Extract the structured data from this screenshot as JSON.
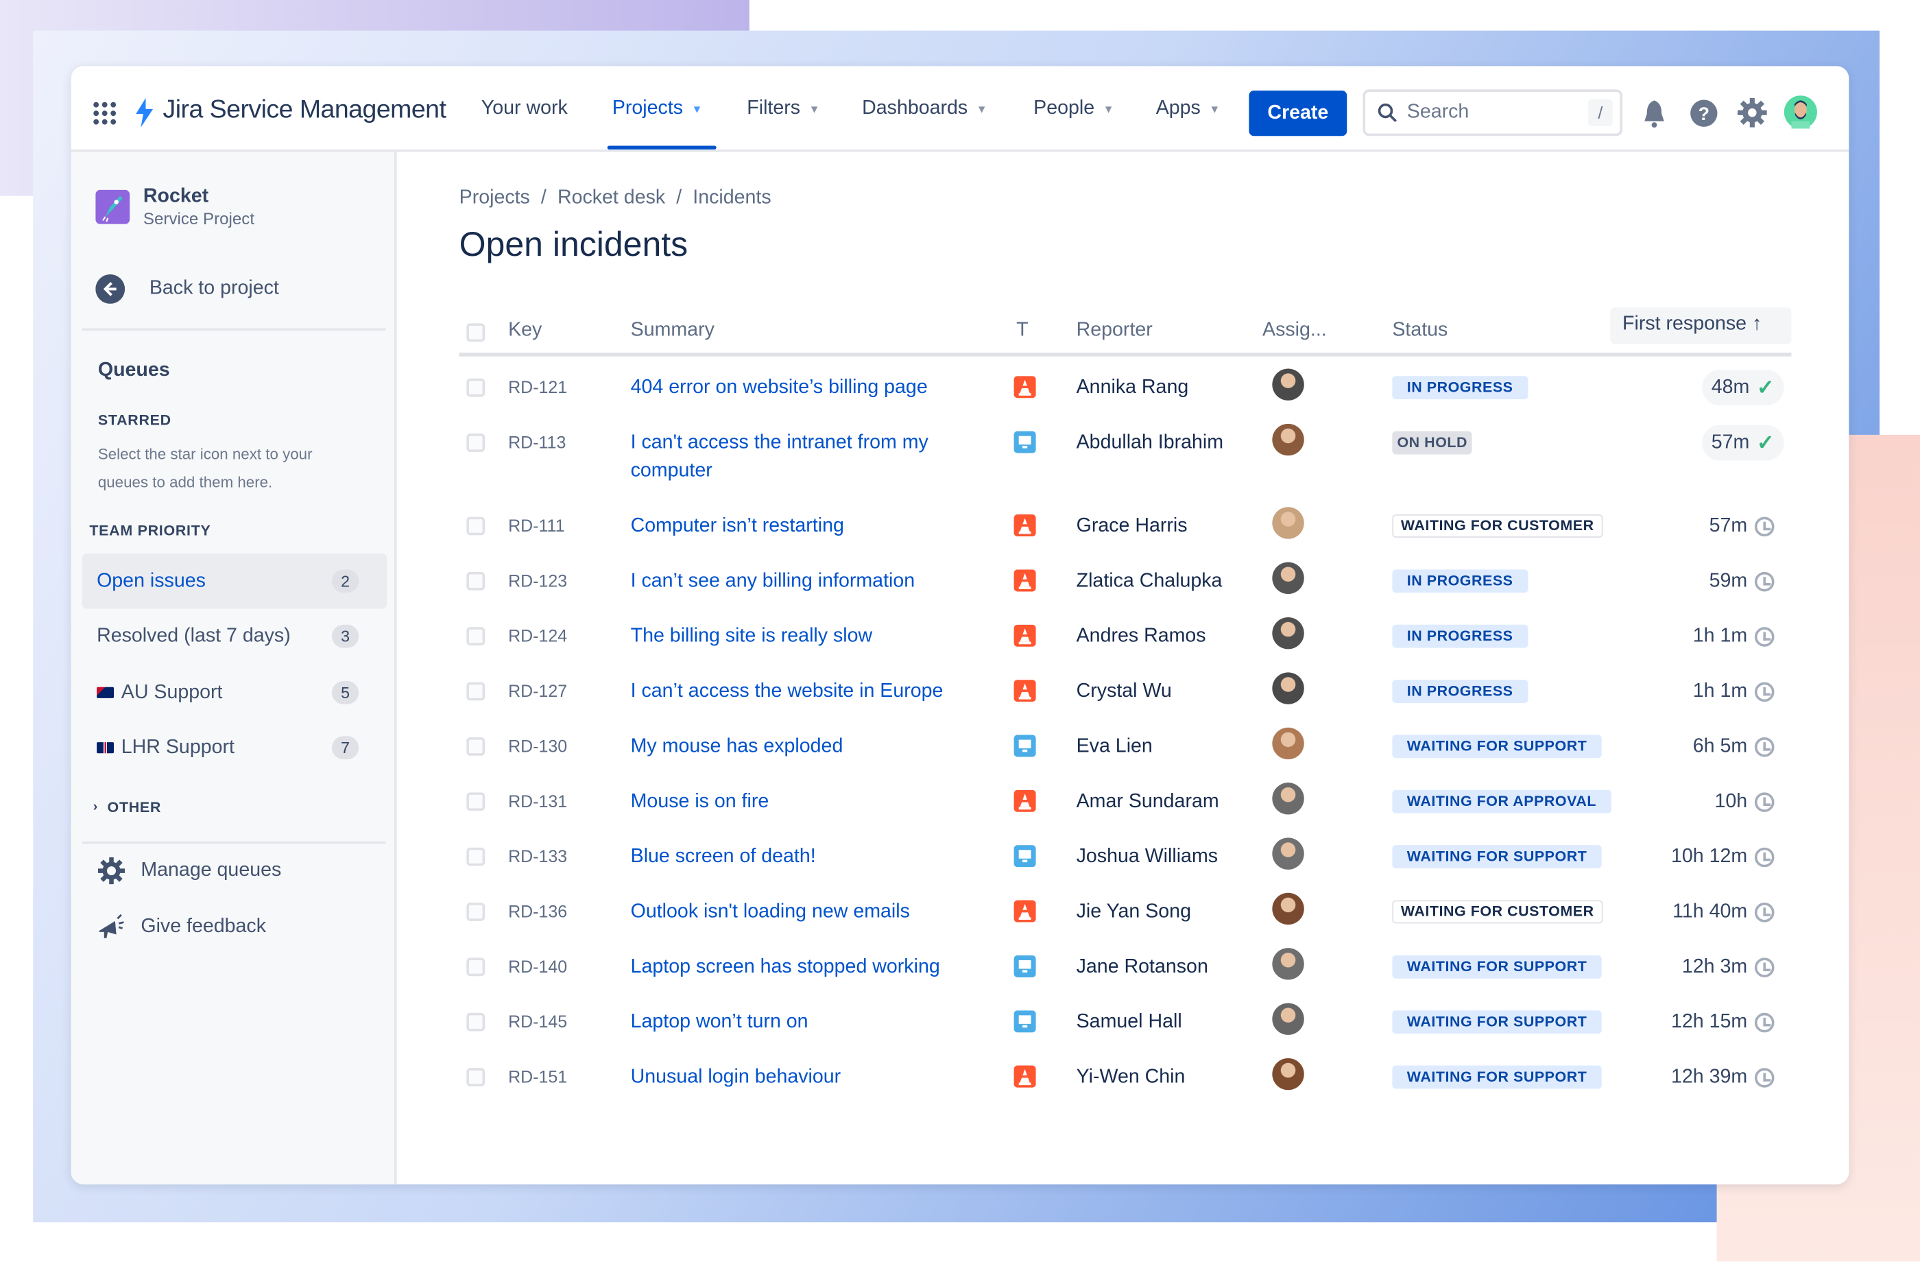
{
  "header": {
    "app_name": "Jira Service Management",
    "nav": [
      {
        "label": "Your work",
        "dropdown": false
      },
      {
        "label": "Projects",
        "dropdown": true,
        "active": true
      },
      {
        "label": "Filters",
        "dropdown": true
      },
      {
        "label": "Dashboards",
        "dropdown": true
      },
      {
        "label": "People",
        "dropdown": true
      },
      {
        "label": "Apps",
        "dropdown": true
      }
    ],
    "create_label": "Create",
    "search_placeholder": "Search",
    "search_shortcut": "/",
    "icons": [
      "app-switcher-icon",
      "bell-icon",
      "help-icon",
      "gear-icon",
      "avatar"
    ],
    "accent": "#0052cc"
  },
  "sidebar": {
    "project_name": "Rocket",
    "project_type": "Service Project",
    "back_label": "Back to project",
    "queues_title": "Queues",
    "starred_title": "STARRED",
    "starred_hint": "Select the star icon next to your queues to add them here.",
    "team_priority_title": "TEAM PRIORITY",
    "queues": [
      {
        "label": "Open issues",
        "count": "2",
        "active": true
      },
      {
        "label": "Resolved (last 7 days)",
        "count": "3"
      },
      {
        "label": "AU Support",
        "count": "5",
        "flag": "au"
      },
      {
        "label": "LHR Support",
        "count": "7",
        "flag": "uk"
      }
    ],
    "other_title": "OTHER",
    "manage_label": "Manage queues",
    "feedback_label": "Give feedback"
  },
  "main": {
    "breadcrumb": [
      "Projects",
      "Rocket desk",
      "Incidents"
    ],
    "title": "Open incidents",
    "columns": {
      "key": "Key",
      "summary": "Summary",
      "type": "T",
      "reporter": "Reporter",
      "assignee": "Assig...",
      "status": "Status",
      "first_response": "First response"
    },
    "status_colors": {
      "blue": "#deebff",
      "grey": "#dfe1e6"
    },
    "rows": [
      {
        "key": "RD-121",
        "summary": "404 error on website’s billing page",
        "type": "incident",
        "reporter": "Annika Rang",
        "status": "IN PROGRESS",
        "status_style": "blue",
        "first_response": "48m",
        "met": true,
        "avatar_color": "#4a4a4a"
      },
      {
        "key": "RD-113",
        "summary": "I can't access the intranet from my computer",
        "type": "service-request",
        "reporter": "Abdullah Ibrahim",
        "status": "ON HOLD",
        "status_style": "grey",
        "first_response": "57m",
        "met": true,
        "avatar_color": "#8a5a3c"
      },
      {
        "key": "RD-111",
        "summary": "Computer isn’t restarting",
        "type": "incident",
        "reporter": "Grace Harris",
        "status": "WAITING FOR CUSTOMER",
        "status_style": "outline",
        "first_response": "57m",
        "met": false,
        "avatar_color": "#c9a27e"
      },
      {
        "key": "RD-123",
        "summary": "I can’t see any billing information",
        "type": "incident",
        "reporter": "Zlatica Chalupka",
        "status": "IN PROGRESS",
        "status_style": "blue",
        "first_response": "59m",
        "met": false,
        "avatar_color": "#555"
      },
      {
        "key": "RD-124",
        "summary": "The billing site is really slow",
        "type": "incident",
        "reporter": "Andres Ramos",
        "status": "IN PROGRESS",
        "status_style": "blue",
        "first_response": "1h 1m",
        "met": false,
        "avatar_color": "#4f4f4f"
      },
      {
        "key": "RD-127",
        "summary": "I can’t access the website in Europe",
        "type": "incident",
        "reporter": "Crystal Wu",
        "status": "IN PROGRESS",
        "status_style": "blue",
        "first_response": "1h 1m",
        "met": false,
        "avatar_color": "#4a4a4a"
      },
      {
        "key": "RD-130",
        "summary": "My mouse has exploded",
        "type": "service-request",
        "reporter": "Eva Lien",
        "status": "WAITING FOR SUPPORT",
        "status_style": "blue",
        "first_response": "6h 5m",
        "met": false,
        "avatar_color": "#b07a55"
      },
      {
        "key": "RD-131",
        "summary": "Mouse is on fire",
        "type": "incident",
        "reporter": "Amar Sundaram",
        "status": "WAITING FOR APPROVAL",
        "status_style": "blue",
        "first_response": "10h",
        "met": false,
        "avatar_color": "#6b6b6b"
      },
      {
        "key": "RD-133",
        "summary": "Blue screen of death!",
        "type": "service-request",
        "reporter": "Joshua Williams",
        "status": "WAITING FOR SUPPORT",
        "status_style": "blue",
        "first_response": "10h 12m",
        "met": false,
        "avatar_color": "#707070"
      },
      {
        "key": "RD-136",
        "summary": "Outlook isn't loading new emails",
        "type": "incident",
        "reporter": "Jie Yan Song",
        "status": "WAITING FOR CUSTOMER",
        "status_style": "outline",
        "first_response": "11h 40m",
        "met": false,
        "avatar_color": "#7a4a30"
      },
      {
        "key": "RD-140",
        "summary": "Laptop screen has stopped working",
        "type": "service-request",
        "reporter": "Jane Rotanson",
        "status": "WAITING FOR SUPPORT",
        "status_style": "blue",
        "first_response": "12h 3m",
        "met": false,
        "avatar_color": "#6e6e6e"
      },
      {
        "key": "RD-145",
        "summary": "Laptop won’t turn on",
        "type": "service-request",
        "reporter": "Samuel Hall",
        "status": "WAITING FOR SUPPORT",
        "status_style": "blue",
        "first_response": "12h 15m",
        "met": false,
        "avatar_color": "#666"
      },
      {
        "key": "RD-151",
        "summary": "Unusual login behaviour",
        "type": "incident",
        "reporter": "Yi-Wen Chin",
        "status": "WAITING FOR SUPPORT",
        "status_style": "blue",
        "first_response": "12h 39m",
        "met": false,
        "avatar_color": "#7d4b2e"
      }
    ],
    "type_colors": {
      "incident": "#ff5630",
      "service-request": "#4bade8"
    }
  }
}
